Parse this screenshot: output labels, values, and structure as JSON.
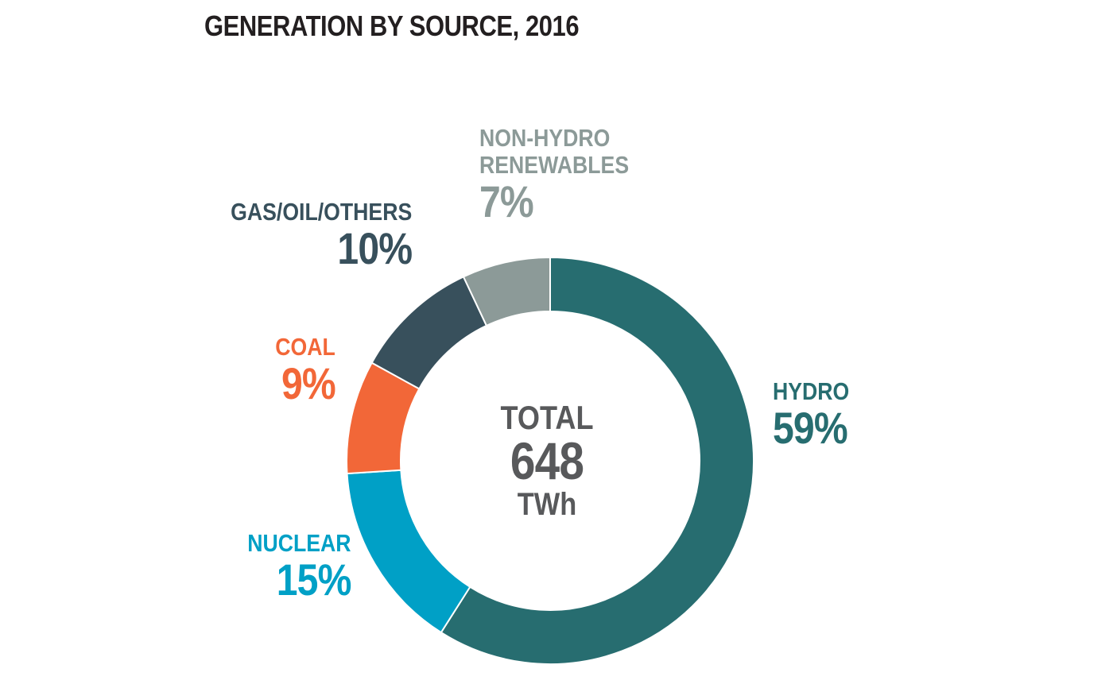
{
  "title": "GENERATION BY SOURCE, 2016",
  "chart_data": {
    "type": "pie",
    "subtype": "donut",
    "title": "GENERATION BY SOURCE, 2016",
    "center": {
      "label": "TOTAL",
      "value": "648",
      "unit": "TWh"
    },
    "slices": [
      {
        "name": "HYDRO",
        "value": 59,
        "label": "59%",
        "color": "#276d70"
      },
      {
        "name": "NUCLEAR",
        "value": 15,
        "label": "15%",
        "color": "#00a0c6"
      },
      {
        "name": "COAL",
        "value": 9,
        "label": "9%",
        "color": "#f26738"
      },
      {
        "name": "GAS/OIL/OTHERS",
        "value": 10,
        "label": "10%",
        "color": "#38505c"
      },
      {
        "name": "NON-HYDRO RENEWABLES",
        "name_lines": [
          "NON-HYDRO",
          "RENEWABLES"
        ],
        "value": 7,
        "label": "7%",
        "color": "#8c9a98"
      }
    ],
    "direction": "clockwise from top"
  }
}
